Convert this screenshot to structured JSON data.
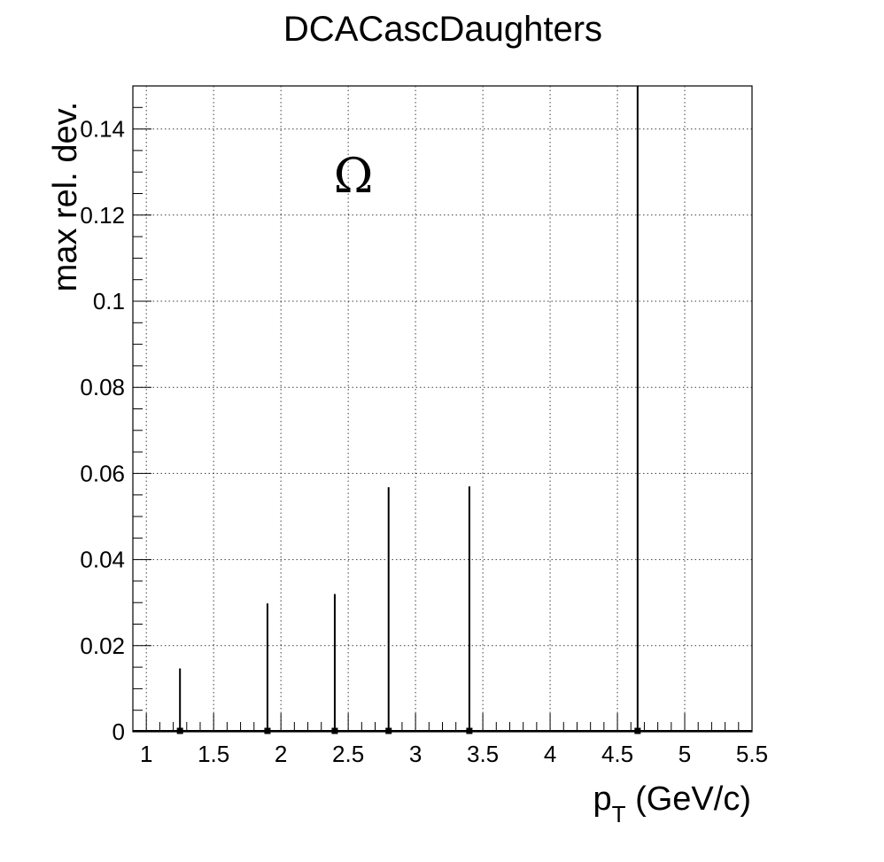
{
  "chart_data": {
    "type": "scatter",
    "title": "DCACascDaughters",
    "xlabel": "p",
    "xlabel_sub": "T",
    "xlabel_unit": " (GeV/c)",
    "ylabel": "max rel. dev.",
    "annotation": "Ω",
    "xlim": [
      0.9,
      5.5
    ],
    "ylim": [
      0,
      0.15
    ],
    "grid": true,
    "x_ticks": [
      1,
      1.5,
      2,
      2.5,
      3,
      3.5,
      4,
      4.5,
      5,
      5.5
    ],
    "x_tick_labels": [
      "1",
      "1.5",
      "2",
      "2.5",
      "3",
      "3.5",
      "4",
      "4.5",
      "5",
      "5.5"
    ],
    "y_ticks": [
      0,
      0.02,
      0.04,
      0.06,
      0.08,
      0.1,
      0.12,
      0.14
    ],
    "y_tick_labels": [
      "0",
      "0.02",
      "0.04",
      "0.06",
      "0.08",
      "0.1",
      "0.12",
      "0.14"
    ],
    "series": [
      {
        "points": [
          {
            "x": 1.25,
            "y": 0,
            "err_up": 0.0147
          },
          {
            "x": 1.9,
            "y": 0,
            "err_up": 0.0298
          },
          {
            "x": 2.4,
            "y": 0,
            "err_up": 0.032
          },
          {
            "x": 2.8,
            "y": 0,
            "err_up": 0.0568
          },
          {
            "x": 3.4,
            "y": 0,
            "err_up": 0.057
          },
          {
            "x": 4.65,
            "y": 0,
            "err_up": 0.15
          }
        ]
      }
    ]
  }
}
